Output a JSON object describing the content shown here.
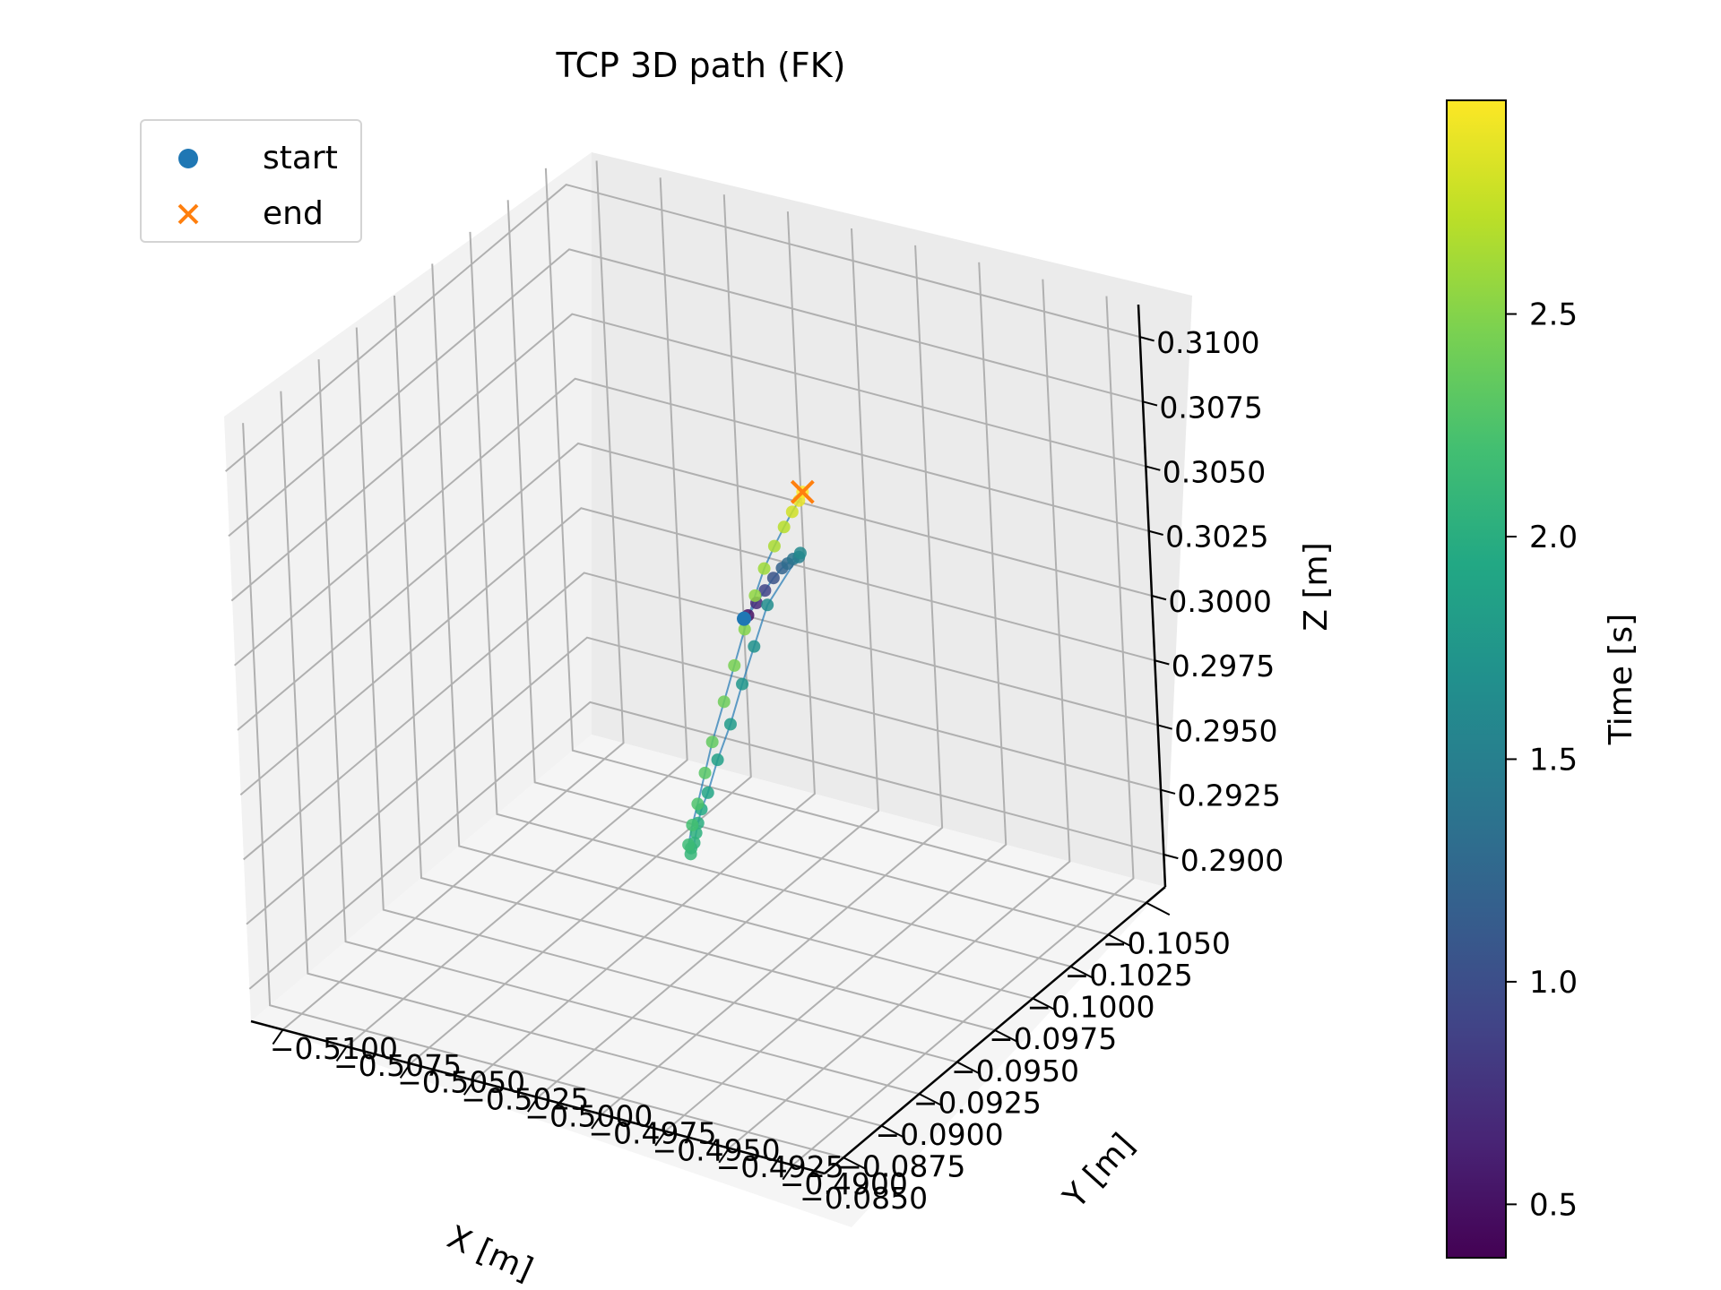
{
  "chart_data": {
    "type": "scatter",
    "projection": "3d",
    "title": "TCP 3D path (FK)",
    "xlabel": "X [m]",
    "ylabel": "Y [m]",
    "zlabel": "Z [m]",
    "xlim": [
      -0.1062,
      -0.0845
    ],
    "ylim": [
      -0.5112,
      -0.4888
    ],
    "zlim": [
      -0.289,
      -0.3112
    ],
    "x_ticks": [
      "−0.1050",
      "−0.1025",
      "−0.1000",
      "−0.0975",
      "−0.0950",
      "−0.0925",
      "−0.0900",
      "−0.0875",
      "−0.0850"
    ],
    "y_ticks": [
      "−0.4900",
      "−0.4925",
      "−0.4950",
      "−0.4975",
      "−0.5000",
      "−0.5025",
      "−0.5050",
      "−0.5075",
      "−0.5100"
    ],
    "z_ticks": [
      "0.3100",
      "0.3075",
      "0.3050",
      "0.3025",
      "0.3000",
      "0.2975",
      "0.2950",
      "0.2925",
      "0.2900"
    ],
    "z_tick_values": [
      0.31,
      0.3075,
      0.305,
      0.3025,
      0.3,
      0.2975,
      0.295,
      0.2925,
      0.29
    ],
    "grid": true,
    "legend_position": "top-left",
    "legend": [
      {
        "label": "start",
        "marker": "circle",
        "color": "#1f77b4"
      },
      {
        "label": "end",
        "marker": "x",
        "color": "#ff7f0e"
      }
    ],
    "colorbar": {
      "label": "Time [s]",
      "ticks": [
        "0.5",
        "1.0",
        "1.5",
        "2.0",
        "2.5"
      ],
      "tick_values": [
        0.5,
        1.0,
        1.5,
        2.0,
        2.5
      ],
      "range": [
        0.38,
        2.98
      ],
      "colormap": "viridis"
    },
    "line_color": "#1f77b4",
    "start": {
      "x": -0.0985,
      "y": -0.5,
      "z": 0.3002,
      "t": 0.38
    },
    "end": {
      "x": -0.104,
      "y": -0.499,
      "z": 0.302,
      "t": 2.98
    },
    "points": [
      {
        "x": -0.0985,
        "y": -0.5,
        "z": 0.3002,
        "t": 0.4
      },
      {
        "x": -0.0986,
        "y": -0.5001,
        "z": 0.3003,
        "t": 0.5
      },
      {
        "x": -0.099,
        "y": -0.5002,
        "z": 0.3006,
        "t": 0.7
      },
      {
        "x": -0.0994,
        "y": -0.5003,
        "z": 0.3009,
        "t": 0.9
      },
      {
        "x": -0.0998,
        "y": -0.5004,
        "z": 0.3012,
        "t": 1.05
      },
      {
        "x": -0.1002,
        "y": -0.5005,
        "z": 0.3014,
        "t": 1.2
      },
      {
        "x": -0.1004,
        "y": -0.5006,
        "z": 0.3015,
        "t": 1.3
      },
      {
        "x": -0.1006,
        "y": -0.5007,
        "z": 0.3016,
        "t": 1.4
      },
      {
        "x": -0.1008,
        "y": -0.5008,
        "z": 0.3016,
        "t": 1.5
      },
      {
        "x": -0.1009,
        "y": -0.5008,
        "z": 0.3017,
        "t": 1.6
      },
      {
        "x": -0.0992,
        "y": -0.5005,
        "z": 0.3005,
        "t": 1.65
      },
      {
        "x": -0.0978,
        "y": -0.5008,
        "z": 0.2997,
        "t": 1.7
      },
      {
        "x": -0.0965,
        "y": -0.5011,
        "z": 0.299,
        "t": 1.75
      },
      {
        "x": -0.0952,
        "y": -0.5014,
        "z": 0.2982,
        "t": 1.8
      },
      {
        "x": -0.094,
        "y": -0.5016,
        "z": 0.2975,
        "t": 1.85
      },
      {
        "x": -0.093,
        "y": -0.5018,
        "z": 0.2968,
        "t": 1.9
      },
      {
        "x": -0.0924,
        "y": -0.5019,
        "z": 0.2965,
        "t": 1.95
      },
      {
        "x": -0.092,
        "y": -0.502,
        "z": 0.2962,
        "t": 2.0
      },
      {
        "x": -0.0917,
        "y": -0.5021,
        "z": 0.296,
        "t": 2.03
      },
      {
        "x": -0.0914,
        "y": -0.5022,
        "z": 0.2958,
        "t": 2.05
      },
      {
        "x": -0.0912,
        "y": -0.5022,
        "z": 0.2957,
        "t": 2.08
      },
      {
        "x": -0.091,
        "y": -0.5023,
        "z": 0.2956,
        "t": 2.1
      },
      {
        "x": -0.0912,
        "y": -0.5021,
        "z": 0.2958,
        "t": 2.15
      },
      {
        "x": -0.0918,
        "y": -0.5019,
        "z": 0.2962,
        "t": 2.2
      },
      {
        "x": -0.0925,
        "y": -0.5017,
        "z": 0.2966,
        "t": 2.25
      },
      {
        "x": -0.0935,
        "y": -0.5014,
        "z": 0.2972,
        "t": 2.3
      },
      {
        "x": -0.0945,
        "y": -0.5011,
        "z": 0.2978,
        "t": 2.35
      },
      {
        "x": -0.0958,
        "y": -0.5008,
        "z": 0.2986,
        "t": 2.4
      },
      {
        "x": -0.097,
        "y": -0.5005,
        "z": 0.2993,
        "t": 2.45
      },
      {
        "x": -0.0982,
        "y": -0.5002,
        "z": 0.3,
        "t": 2.5
      },
      {
        "x": -0.0994,
        "y": -0.4999,
        "z": 0.3006,
        "t": 2.55
      },
      {
        "x": -0.1005,
        "y": -0.4996,
        "z": 0.301,
        "t": 2.6
      },
      {
        "x": -0.1015,
        "y": -0.4994,
        "z": 0.3013,
        "t": 2.65
      },
      {
        "x": -0.1023,
        "y": -0.4993,
        "z": 0.3016,
        "t": 2.7
      },
      {
        "x": -0.103,
        "y": -0.4992,
        "z": 0.3018,
        "t": 2.8
      },
      {
        "x": -0.1036,
        "y": -0.4991,
        "z": 0.3019,
        "t": 2.9
      },
      {
        "x": -0.104,
        "y": -0.499,
        "z": 0.302,
        "t": 2.98
      }
    ]
  }
}
